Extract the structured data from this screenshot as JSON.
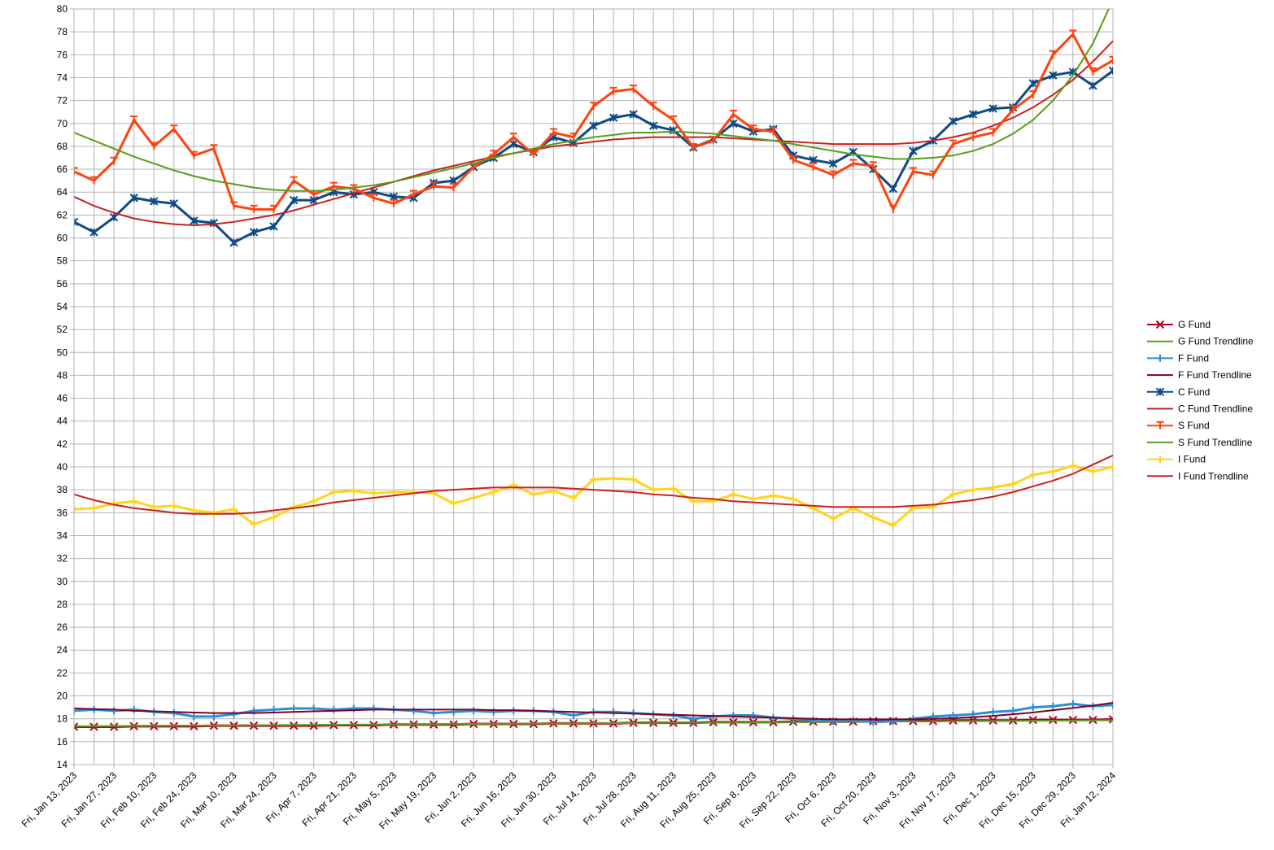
{
  "chart_data": {
    "type": "line",
    "categories": [
      "Fri, Jan 13, 2023",
      null,
      "Fri, Jan 27, 2023",
      null,
      "Fri, Feb 10, 2023",
      null,
      "Fri, Feb 24, 2023",
      null,
      "Fri, Mar 10, 2023",
      null,
      "Fri, Mar 24, 2023",
      null,
      "Fri, Apr 7, 2023",
      null,
      "Fri, Apr 21, 2023",
      null,
      "Fri, May 5, 2023",
      null,
      "Fri, May 19, 2023",
      null,
      "Fri, Jun 2, 2023",
      null,
      "Fri, Jun 16, 2023",
      null,
      "Fri, Jun 30, 2023",
      null,
      "Fri, Jul 14, 2023",
      null,
      "Fri, Jul 28, 2023",
      null,
      "Fri, Aug 11, 2023",
      null,
      "Fri, Aug 25, 2023",
      null,
      "Fri, Sep 8, 2023",
      null,
      "Fri, Sep 22, 2023",
      null,
      "Fri, Oct 6, 2023",
      null,
      "Fri, Oct 20, 2023",
      null,
      "Fri, Nov 3, 2023",
      null,
      "Fri, Nov 17, 2023",
      null,
      "Fri, Dec 1, 2023",
      null,
      "Fri, Dec 15, 2023",
      null,
      "Fri, Dec 29, 2023",
      null,
      "Fri, Jan 12, 2024"
    ],
    "ylim": [
      14,
      80
    ],
    "yticks": [
      14,
      16,
      18,
      20,
      22,
      24,
      26,
      28,
      30,
      32,
      34,
      36,
      38,
      40,
      42,
      44,
      46,
      48,
      50,
      52,
      54,
      56,
      58,
      60,
      62,
      64,
      66,
      68,
      70,
      72,
      74,
      76,
      78,
      80
    ],
    "grid": true,
    "legend": "right",
    "series": [
      {
        "name": "G Fund",
        "color": "#b00020",
        "marker": "x",
        "values": [
          17.3,
          17.3,
          17.3,
          17.35,
          17.35,
          17.35,
          17.35,
          17.4,
          17.4,
          17.4,
          17.4,
          17.4,
          17.4,
          17.45,
          17.45,
          17.45,
          17.5,
          17.5,
          17.5,
          17.5,
          17.55,
          17.55,
          17.55,
          17.55,
          17.6,
          17.6,
          17.6,
          17.6,
          17.65,
          17.65,
          17.65,
          17.65,
          17.7,
          17.7,
          17.7,
          17.7,
          17.75,
          17.75,
          17.75,
          17.75,
          17.8,
          17.8,
          17.8,
          17.8,
          17.85,
          17.85,
          17.85,
          17.85,
          17.9,
          17.9,
          17.9,
          17.9,
          17.95
        ]
      },
      {
        "name": "G Fund Trendline",
        "color": "#579d1c",
        "values": [
          17.35,
          17.36,
          17.37,
          17.38,
          17.39,
          17.4,
          17.41,
          17.42,
          17.43,
          17.44,
          17.45,
          17.46,
          17.47,
          17.48,
          17.49,
          17.5,
          17.51,
          17.52,
          17.53,
          17.54,
          17.55,
          17.56,
          17.57,
          17.58,
          17.59,
          17.6,
          17.61,
          17.62,
          17.63,
          17.64,
          17.65,
          17.66,
          17.67,
          17.68,
          17.69,
          17.7,
          17.71,
          17.72,
          17.73,
          17.74,
          17.75,
          17.76,
          17.77,
          17.78,
          17.79,
          17.8,
          17.81,
          17.82,
          17.83,
          17.84,
          17.85,
          17.86,
          17.87
        ]
      },
      {
        "name": "F Fund",
        "color": "#2a8fd6",
        "marker": "+",
        "values": [
          18.7,
          18.8,
          18.7,
          18.8,
          18.6,
          18.5,
          18.2,
          18.2,
          18.4,
          18.7,
          18.8,
          18.9,
          18.9,
          18.8,
          18.9,
          18.9,
          18.8,
          18.7,
          18.5,
          18.6,
          18.7,
          18.6,
          18.7,
          18.7,
          18.6,
          18.3,
          18.6,
          18.6,
          18.5,
          18.4,
          18.3,
          18,
          18.2,
          18.3,
          18.3,
          18.1,
          18,
          17.9,
          17.8,
          17.9,
          17.7,
          17.8,
          18,
          18.2,
          18.3,
          18.4,
          18.6,
          18.7,
          19,
          19.1,
          19.3,
          19.1,
          19.2
        ]
      },
      {
        "name": "F Fund Trendline",
        "color": "#7e0021",
        "values": [
          18.9,
          18.85,
          18.8,
          18.7,
          18.65,
          18.6,
          18.55,
          18.5,
          18.5,
          18.5,
          18.55,
          18.6,
          18.65,
          18.7,
          18.75,
          18.8,
          18.8,
          18.8,
          18.8,
          18.8,
          18.8,
          18.75,
          18.75,
          18.7,
          18.65,
          18.6,
          18.55,
          18.5,
          18.45,
          18.4,
          18.35,
          18.3,
          18.25,
          18.2,
          18.15,
          18.1,
          18.05,
          18,
          17.95,
          17.95,
          17.95,
          17.95,
          17.95,
          18,
          18.05,
          18.15,
          18.25,
          18.4,
          18.55,
          18.75,
          18.95,
          19.15,
          19.4
        ]
      },
      {
        "name": "C Fund",
        "color": "#0e4a85",
        "marker": "asterisk",
        "values": [
          61.4,
          60.5,
          61.8,
          63.5,
          63.2,
          63,
          61.5,
          61.3,
          59.6,
          60.5,
          61,
          63.3,
          63.3,
          64,
          63.8,
          64,
          63.6,
          63.5,
          64.8,
          65,
          66.2,
          67,
          68.2,
          67.5,
          68.8,
          68.3,
          69.8,
          70.5,
          70.8,
          69.8,
          69.4,
          67.9,
          68.6,
          70,
          69.3,
          69.5,
          67.2,
          66.8,
          66.5,
          67.5,
          66,
          64.3,
          67.6,
          68.5,
          70.2,
          70.8,
          71.3,
          71.4,
          73.5,
          74.2,
          74.5,
          73.3,
          74.6
        ]
      },
      {
        "name": "C Fund Trendline",
        "color": "#c9211e",
        "values": [
          63.6,
          62.8,
          62.2,
          61.7,
          61.4,
          61.2,
          61.1,
          61.2,
          61.4,
          61.7,
          62,
          62.4,
          62.9,
          63.4,
          63.9,
          64.4,
          64.9,
          65.4,
          65.9,
          66.3,
          66.7,
          67.1,
          67.4,
          67.7,
          68,
          68.2,
          68.4,
          68.6,
          68.7,
          68.8,
          68.8,
          68.8,
          68.8,
          68.7,
          68.6,
          68.5,
          68.4,
          68.3,
          68.2,
          68.2,
          68.2,
          68.2,
          68.3,
          68.5,
          68.8,
          69.2,
          69.8,
          70.5,
          71.4,
          72.5,
          73.8,
          75.4,
          77.2
        ]
      },
      {
        "name": "S Fund",
        "color": "#ff420e",
        "marker": "dash",
        "values": [
          65.8,
          65,
          66.7,
          70.3,
          68,
          69.5,
          67.2,
          67.8,
          62.8,
          62.5,
          62.5,
          65,
          63.8,
          64.5,
          64.3,
          63.5,
          63,
          63.8,
          64.5,
          64.4,
          66.2,
          67.3,
          68.8,
          67.3,
          69.2,
          68.8,
          71.5,
          72.8,
          73,
          71.5,
          70.3,
          67.9,
          68.5,
          70.8,
          69.5,
          69.3,
          66.8,
          66.2,
          65.5,
          66.5,
          66.3,
          62.5,
          65.8,
          65.5,
          68.2,
          68.8,
          69.2,
          71.2,
          72.5,
          76,
          77.8,
          74.5,
          75.5
        ]
      },
      {
        "name": "S Fund Trendline",
        "color": "#579d1c",
        "values": [
          69.2,
          68.5,
          67.8,
          67.1,
          66.5,
          65.9,
          65.4,
          65,
          64.7,
          64.4,
          64.2,
          64.1,
          64.1,
          64.2,
          64.4,
          64.6,
          64.9,
          65.3,
          65.7,
          66.1,
          66.5,
          67,
          67.4,
          67.8,
          68.2,
          68.5,
          68.8,
          69,
          69.2,
          69.2,
          69.3,
          69.2,
          69.1,
          68.9,
          68.7,
          68.5,
          68.2,
          67.9,
          67.6,
          67.3,
          67.1,
          66.9,
          66.9,
          67,
          67.2,
          67.6,
          68.2,
          69.1,
          70.3,
          72,
          74.2,
          77,
          80.8
        ]
      },
      {
        "name": "I Fund",
        "color": "#ffd320",
        "marker": "+",
        "values": [
          36.3,
          36.4,
          36.8,
          37,
          36.5,
          36.6,
          36.2,
          36,
          36.3,
          35,
          35.6,
          36.5,
          37,
          37.8,
          37.9,
          37.7,
          37.8,
          37.8,
          37.7,
          36.8,
          37.3,
          37.8,
          38.4,
          37.6,
          37.9,
          37.3,
          38.9,
          39,
          38.9,
          38,
          38.1,
          37,
          37,
          37.6,
          37.2,
          37.5,
          37.2,
          36.4,
          35.5,
          36.4,
          35.6,
          34.9,
          36.4,
          36.5,
          37.6,
          38,
          38.2,
          38.5,
          39.3,
          39.6,
          40.1,
          39.6,
          40
        ]
      },
      {
        "name": "I Fund Trendline",
        "color": "#c9211e",
        "values": [
          37.6,
          37.1,
          36.7,
          36.4,
          36.2,
          36,
          35.9,
          35.9,
          35.9,
          36,
          36.2,
          36.4,
          36.6,
          36.9,
          37.1,
          37.3,
          37.5,
          37.7,
          37.9,
          38,
          38.1,
          38.2,
          38.2,
          38.2,
          38.2,
          38.1,
          38,
          37.9,
          37.8,
          37.6,
          37.5,
          37.3,
          37.2,
          37,
          36.9,
          36.8,
          36.7,
          36.6,
          36.5,
          36.5,
          36.5,
          36.5,
          36.6,
          36.7,
          36.9,
          37.1,
          37.4,
          37.8,
          38.3,
          38.8,
          39.4,
          40.2,
          41
        ]
      }
    ]
  }
}
